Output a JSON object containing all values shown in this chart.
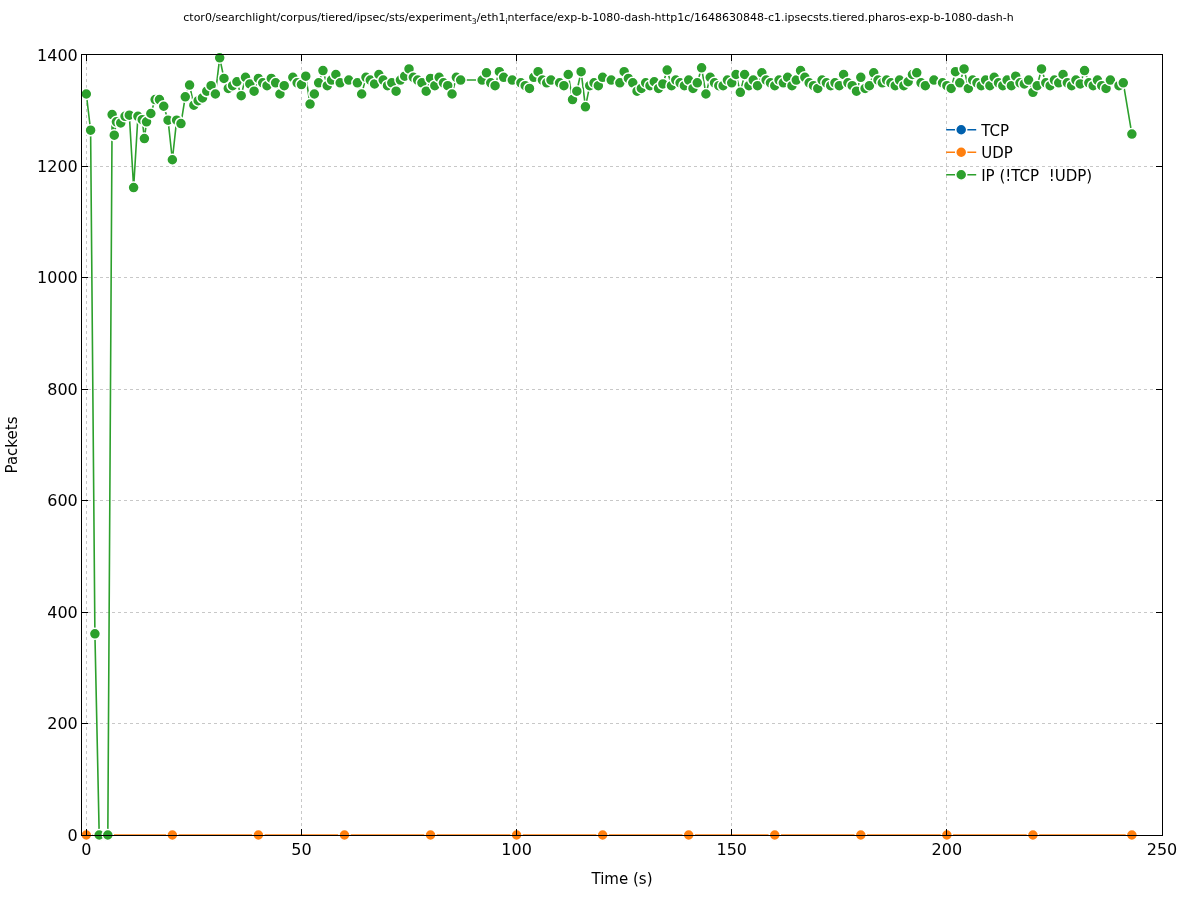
{
  "chart_data": {
    "type": "line",
    "title": "ctor0/searchlight/corpus/tiered/ipsec/sts/experiment$_{3}$/eth1$_{i}$nterface/exp-b-1080-dash-http1c/1648630848-c1.ipsecsts.tiered.pharos-exp-b-1080-dash-h",
    "xlabel": "Time (s)",
    "ylabel": "Packets",
    "xlim": [
      -1,
      250
    ],
    "xticks": [
      0,
      50,
      100,
      150,
      200,
      250
    ],
    "ylim": [
      0,
      1400
    ],
    "yticks": [
      0,
      200,
      400,
      600,
      800,
      1000,
      1200,
      1400
    ],
    "grid": true,
    "legend": "top right",
    "marker": "circle",
    "line_style": "solid",
    "series": [
      {
        "name": "TCP",
        "color": "#0060ad",
        "marker": "circle"
      },
      {
        "name": "UDP",
        "color": "#ff7f0e",
        "x": [
          0,
          20,
          40,
          60,
          80,
          100,
          120,
          140,
          160,
          180,
          200,
          220,
          243
        ],
        "values": [
          0,
          0,
          0,
          0,
          0,
          0,
          0,
          0,
          0,
          0,
          0,
          0,
          0
        ]
      },
      {
        "name": "IP (!TCP  !UDP)",
        "color": "#2ca02c",
        "x": [
          0,
          1,
          2,
          3,
          5,
          6,
          6.5,
          7,
          8,
          9,
          10,
          11,
          12,
          13,
          13.5,
          14,
          15,
          16,
          17,
          18,
          19,
          20,
          21,
          22,
          23,
          24,
          25,
          26,
          27,
          28,
          29,
          30,
          31,
          32,
          33,
          34,
          35,
          36,
          37,
          38,
          39,
          40,
          41,
          42,
          43,
          44,
          45,
          46,
          48,
          49,
          50,
          51,
          52,
          53,
          54,
          55,
          56,
          57,
          58,
          59,
          61,
          63,
          64,
          65,
          66,
          67,
          68,
          69,
          70,
          71,
          72,
          73,
          74,
          75,
          76,
          77,
          78,
          79,
          80,
          81,
          82,
          83,
          84,
          85,
          86,
          87,
          92,
          93,
          94,
          95,
          96,
          97,
          99,
          101,
          102,
          103,
          104,
          105,
          106,
          107,
          108,
          110,
          111,
          112,
          113,
          114,
          115,
          116,
          117,
          118,
          119,
          120,
          122,
          124,
          125,
          126,
          127,
          128,
          129,
          130,
          131,
          132,
          133,
          134,
          135,
          136,
          137,
          138,
          139,
          140,
          141,
          142,
          143,
          144,
          145,
          146,
          147,
          148,
          149,
          150,
          151,
          152,
          153,
          154,
          155,
          156,
          157,
          158,
          159,
          160,
          161,
          162,
          163,
          164,
          165,
          166,
          167,
          168,
          169,
          170,
          171,
          172,
          173,
          174,
          175,
          176,
          177,
          178,
          179,
          180,
          181,
          182,
          183,
          184,
          185,
          186,
          187,
          188,
          189,
          190,
          191,
          192,
          193,
          194,
          195,
          197,
          199,
          200,
          201,
          202,
          203,
          204,
          205,
          206,
          207,
          208,
          209,
          210,
          211,
          212,
          213,
          214,
          215,
          216,
          217,
          218,
          219,
          220,
          221,
          222,
          223,
          224,
          225,
          226,
          227,
          228,
          229,
          230,
          231,
          232,
          233,
          234,
          235,
          236,
          237,
          238,
          240,
          241,
          243
        ],
        "values": [
          1330,
          1265,
          361,
          0,
          0,
          1293,
          1256,
          1280,
          1278,
          1290,
          1292,
          1162,
          1290,
          1284,
          1250,
          1280,
          1295,
          1320,
          1320,
          1308,
          1283,
          1212,
          1283,
          1277,
          1325,
          1346,
          1310,
          1318,
          1323,
          1335,
          1345,
          1330,
          1395,
          1358,
          1340,
          1345,
          1352,
          1327,
          1360,
          1348,
          1335,
          1358,
          1350,
          1345,
          1358,
          1350,
          1330,
          1345,
          1360,
          1350,
          1347,
          1362,
          1312,
          1330,
          1350,
          1372,
          1345,
          1355,
          1365,
          1350,
          1355,
          1350,
          1330,
          1360,
          1355,
          1348,
          1365,
          1355,
          1345,
          1350,
          1335,
          1355,
          1362,
          1375,
          1360,
          1355,
          1350,
          1335,
          1358,
          1345,
          1360,
          1350,
          1345,
          1330,
          1360,
          1355,
          1355,
          1368,
          1350,
          1345,
          1370,
          1360,
          1355,
          1350,
          1345,
          1340,
          1360,
          1370,
          1355,
          1350,
          1355,
          1350,
          1345,
          1365,
          1320,
          1335,
          1370,
          1307,
          1345,
          1350,
          1345,
          1360,
          1355,
          1350,
          1370,
          1358,
          1350,
          1335,
          1340,
          1350,
          1345,
          1352,
          1340,
          1348,
          1373,
          1345,
          1355,
          1350,
          1345,
          1355,
          1340,
          1350,
          1377,
          1330,
          1360,
          1350,
          1345,
          1345,
          1355,
          1350,
          1365,
          1333,
          1365,
          1345,
          1355,
          1345,
          1368,
          1355,
          1350,
          1345,
          1355,
          1350,
          1360,
          1345,
          1355,
          1372,
          1360,
          1350,
          1345,
          1340,
          1355,
          1350,
          1345,
          1350,
          1345,
          1365,
          1350,
          1345,
          1335,
          1360,
          1340,
          1345,
          1368,
          1355,
          1350,
          1355,
          1350,
          1345,
          1355,
          1345,
          1352,
          1365,
          1368,
          1350,
          1345,
          1355,
          1350,
          1345,
          1340,
          1370,
          1350,
          1375,
          1340,
          1355,
          1350,
          1345,
          1355,
          1345,
          1360,
          1350,
          1345,
          1355,
          1345,
          1362,
          1350,
          1348,
          1355,
          1333,
          1345,
          1375,
          1350,
          1345,
          1355,
          1350,
          1365,
          1350,
          1345,
          1355,
          1348,
          1372,
          1350,
          1345,
          1355,
          1345,
          1340,
          1355,
          1345,
          1350,
          1258
        ]
      }
    ]
  }
}
